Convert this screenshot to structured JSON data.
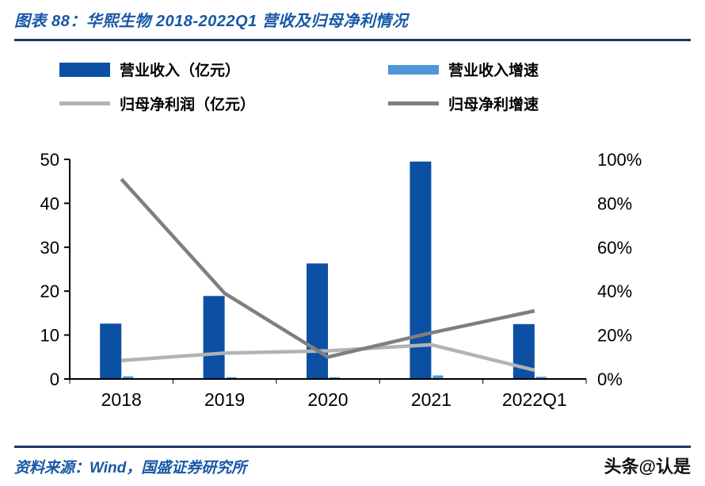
{
  "header": {
    "title": "图表 88：华熙生物 2018-2022Q1 营收及归母净利情况"
  },
  "legend": [
    {
      "label": "营业收入（亿元）",
      "type": "bar",
      "color": "#0C50A4"
    },
    {
      "label": "营业收入增速",
      "type": "bar",
      "color": "#4E96D9"
    },
    {
      "label": "归母净利润（亿元）",
      "type": "line",
      "color": "#B3B3B3"
    },
    {
      "label": "归母净利增速",
      "type": "line",
      "color": "#7F7F7F"
    }
  ],
  "chart_data": {
    "type": "bar",
    "title": "华熙生物 2018-2022Q1 营收及归母净利情况",
    "categories": [
      "2018",
      "2019",
      "2020",
      "2021",
      "2022Q1"
    ],
    "series": [
      {
        "name": "营业收入（亿元）",
        "type": "bar",
        "axis": "left",
        "color": "#0C50A4",
        "values": [
          12.6,
          18.9,
          26.3,
          49.5,
          12.5
        ]
      },
      {
        "name": "营业收入增速",
        "type": "bar",
        "axis": "right",
        "color": "#4E96D9",
        "values": [
          1.2,
          0.8,
          0.8,
          1.6,
          1.0
        ]
      },
      {
        "name": "归母净利润（亿元）",
        "type": "line",
        "axis": "left",
        "color": "#B3B3B3",
        "values": [
          4.2,
          5.9,
          6.4,
          7.8,
          2.0
        ]
      },
      {
        "name": "归母净利增速",
        "type": "line",
        "axis": "right",
        "color": "#7F7F7F",
        "values": [
          91,
          39,
          10,
          21,
          31
        ]
      }
    ],
    "left_axis": {
      "min": 0,
      "max": 50,
      "ticks": [
        0,
        10,
        20,
        30,
        40,
        50
      ]
    },
    "right_axis": {
      "min": 0,
      "max": 100,
      "ticks": [
        "0%",
        "20%",
        "40%",
        "60%",
        "80%",
        "100%"
      ]
    },
    "grid": false,
    "legend_position": "top"
  },
  "footer": {
    "source": "资料来源：Wind，国盛证券研究所",
    "watermark": "头条@认是"
  }
}
